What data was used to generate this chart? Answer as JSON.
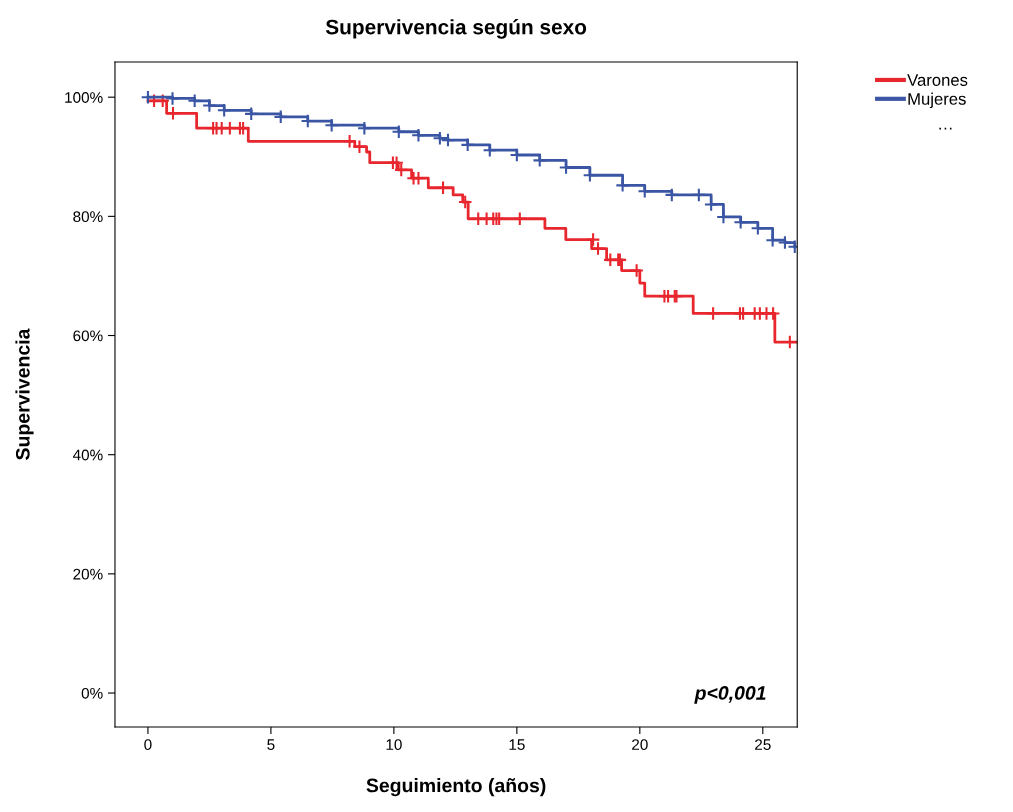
{
  "chart_data": {
    "type": "step",
    "title": "Supervivencia según sexo",
    "xlabel": "Seguimiento (años)",
    "ylabel": "Supervivencia",
    "xlim": [
      -1.34,
      26.4
    ],
    "ylim": [
      -5.7,
      105.9
    ],
    "xticks": [
      0,
      5,
      10,
      15,
      20,
      25
    ],
    "yticks": [
      {
        "value": 0,
        "label": "0%"
      },
      {
        "value": 20,
        "label": "20%"
      },
      {
        "value": 40,
        "label": "40%"
      },
      {
        "value": 60,
        "label": "60%"
      },
      {
        "value": 80,
        "label": "80%"
      },
      {
        "value": 100,
        "label": "100%"
      }
    ],
    "grid": false,
    "legend": "top right",
    "series": [
      {
        "name": "Varones",
        "color": "#e8262d",
        "marker": "none",
        "x": [
          0,
          0.76,
          1.98,
          4.08,
          8.41,
          8.89,
          9.02,
          10.18,
          10.72,
          11.4,
          12.41,
          12.8,
          13.02,
          16.14,
          16.99,
          18.04,
          18.65,
          19.26,
          20.0,
          20.2,
          22.17,
          25.49,
          26.4
        ],
        "values": [
          99.4,
          97.3,
          94.8,
          92.6,
          91.7,
          90.8,
          89.0,
          87.8,
          86.4,
          84.8,
          83.6,
          82.4,
          79.6,
          78.0,
          76.1,
          74.6,
          72.7,
          70.9,
          68.8,
          66.6,
          63.7,
          58.9,
          58.9
        ]
      },
      {
        "type": "scatter",
        "color": "#e8262d",
        "marker": "cross",
        "x": [
          0.25,
          0.6,
          1.02,
          2.65,
          2.79,
          3.0,
          3.33,
          3.74,
          3.87,
          8.2,
          8.6,
          9.96,
          10.11,
          10.3,
          10.8,
          11.0,
          12.0,
          12.9,
          13.43,
          13.77,
          14.04,
          14.17,
          14.28,
          15.12,
          18.1,
          18.3,
          18.8,
          19.12,
          19.19,
          19.87,
          21.0,
          21.15,
          21.42,
          21.49,
          22.98,
          24.07,
          24.2,
          24.67,
          24.88,
          25.15,
          25.42,
          26.1
        ],
        "values": [
          99.4,
          99.4,
          97.3,
          94.8,
          94.8,
          94.8,
          94.8,
          94.8,
          94.8,
          92.6,
          91.7,
          89.0,
          89.0,
          87.8,
          86.4,
          86.4,
          84.8,
          82.4,
          79.6,
          79.6,
          79.6,
          79.6,
          79.6,
          79.6,
          76.1,
          74.6,
          72.7,
          72.7,
          72.7,
          70.9,
          66.6,
          66.6,
          66.6,
          66.6,
          63.7,
          63.7,
          63.7,
          63.7,
          63.7,
          63.7,
          63.7,
          58.9
        ]
      },
      {
        "name": "Mujeres",
        "color": "#3a55a4",
        "marker": "cross",
        "x": [
          0,
          1.0,
          1.9,
          2.5,
          3.1,
          4.2,
          5.4,
          6.5,
          7.47,
          8.8,
          10.2,
          11.0,
          11.87,
          12.2,
          13.0,
          13.9,
          15.0,
          15.93,
          17.0,
          17.97,
          19.3,
          20.2,
          21.3,
          22.4,
          22.9,
          23.4,
          24.1,
          24.8,
          25.4,
          25.9,
          26.3
        ],
        "values": [
          100,
          99.8,
          99.4,
          98.6,
          97.8,
          97.2,
          96.7,
          96.0,
          95.3,
          94.8,
          94.2,
          93.6,
          93.1,
          92.8,
          92.0,
          91.1,
          90.3,
          89.4,
          88.2,
          86.9,
          85.2,
          84.2,
          83.6,
          83.6,
          82.0,
          79.9,
          79.0,
          78.0,
          76.0,
          75.6,
          74.9
        ]
      }
    ],
    "annotations": [
      "p<0,001",
      "…"
    ]
  }
}
